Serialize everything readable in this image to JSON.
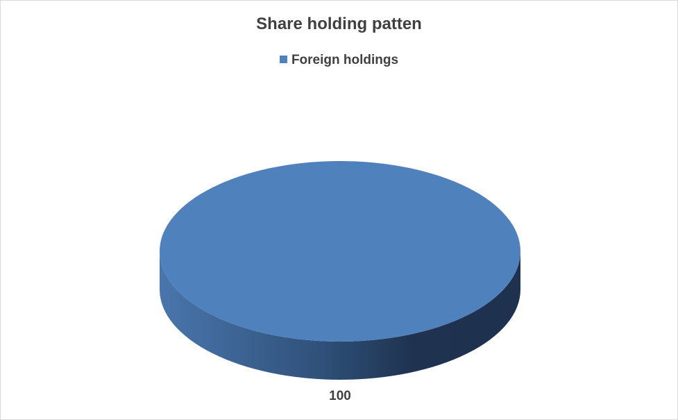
{
  "chart_data": {
    "type": "pie",
    "style": "3d",
    "title": "Share holding patten",
    "legend_position": "top",
    "series": [
      {
        "name": "Foreign holdings",
        "value": 100,
        "label": "100",
        "color": "#4f81bd"
      }
    ]
  }
}
